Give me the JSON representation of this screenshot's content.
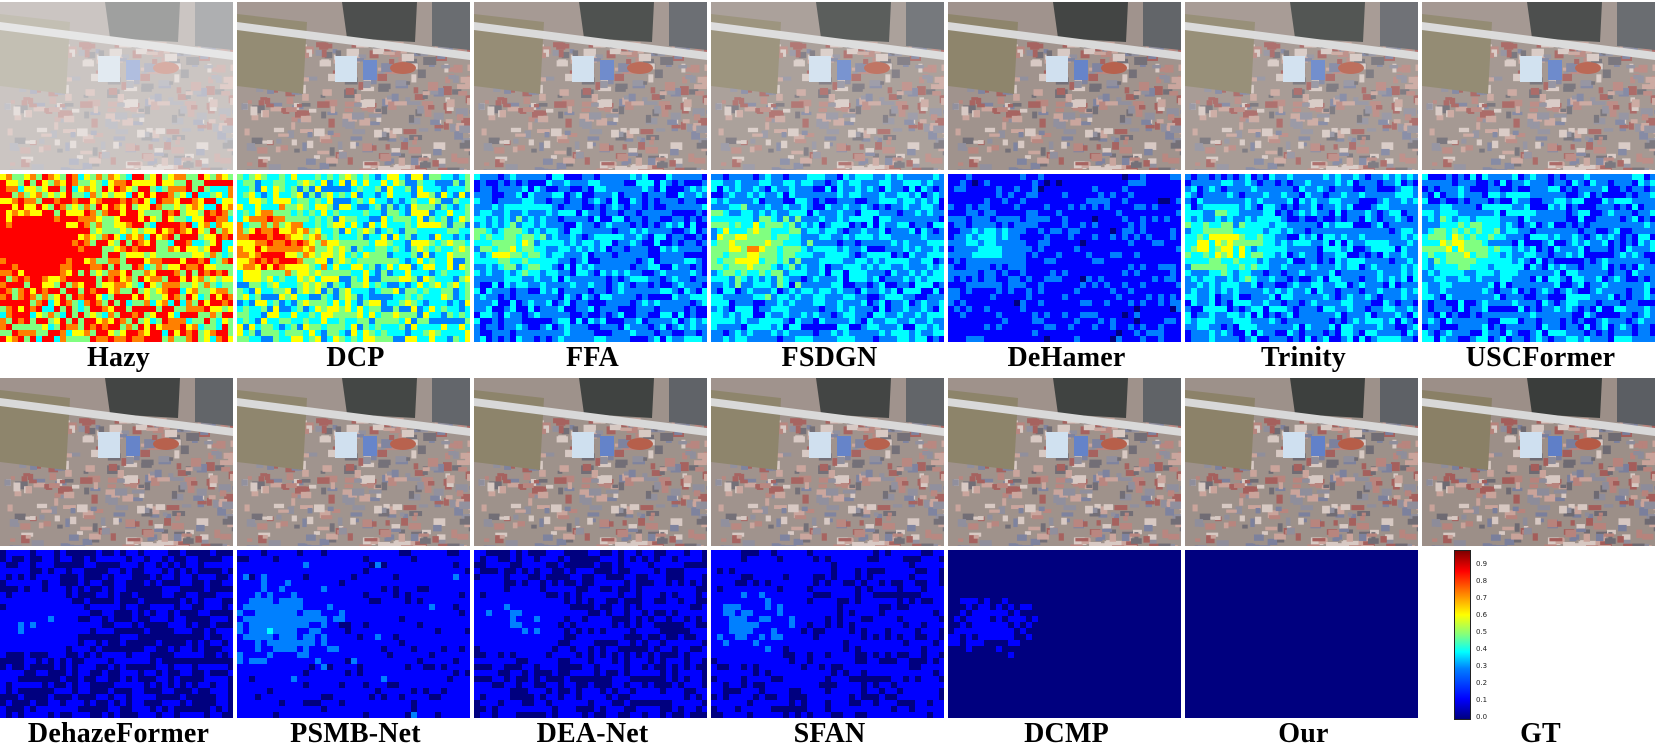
{
  "methods": [
    "Hazy",
    "DCP",
    "FFA",
    "FSDGN",
    "DeHamer",
    "Trinity",
    "USCFormer",
    "DehazeFormer",
    "PSMB-Net",
    "DEA-Net",
    "SFAN",
    "DCMP",
    "Our",
    "GT"
  ],
  "error_level": [
    0.75,
    0.5,
    0.3,
    0.35,
    0.2,
    0.32,
    0.3,
    0.12,
    0.18,
    0.13,
    0.15,
    0.08,
    0.04
  ],
  "colorbar": {
    "ticks": [
      "0.0",
      "0.1",
      "0.2",
      "0.3",
      "0.4",
      "0.5",
      "0.6",
      "0.7",
      "0.8",
      "0.9"
    ],
    "colors": [
      "#00007f",
      "#0000ff",
      "#0080ff",
      "#00ffff",
      "#80ff80",
      "#ffff00",
      "#ff8000",
      "#ff0000",
      "#7f0000"
    ]
  }
}
